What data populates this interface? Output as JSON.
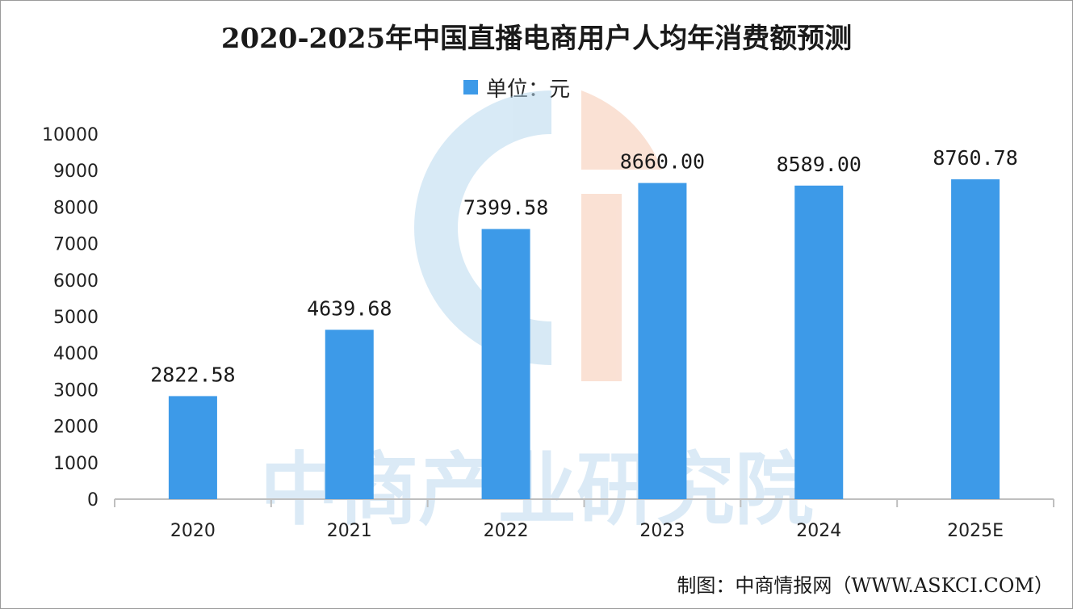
{
  "chart_data": {
    "type": "bar",
    "title": "2020-2025年中国直播电商用户人均年消费额预测",
    "legend": "单位：元",
    "legend_position": "top-center",
    "categories": [
      "2020",
      "2021",
      "2022",
      "2023",
      "2024",
      "2025E"
    ],
    "series": [
      {
        "name": "单位：元",
        "values": [
          2822.58,
          4639.68,
          7399.58,
          8660.0,
          8589.0,
          8760.78
        ],
        "labels": [
          "2822.58",
          "4639.68",
          "7399.58",
          "8660.00",
          "8589.00",
          "8760.78"
        ]
      }
    ],
    "ylim": [
      0,
      10000
    ],
    "yticks": [
      "0",
      "1000",
      "2000",
      "3000",
      "4000",
      "5000",
      "6000",
      "7000",
      "8000",
      "9000",
      "10000"
    ],
    "grid": false,
    "colors": {
      "bar": "#3d9ae8",
      "axis": "#bfbfbf"
    }
  },
  "watermark": "中商产业研究院",
  "source": "制图：中商情报网（WWW.ASKCI.COM）"
}
